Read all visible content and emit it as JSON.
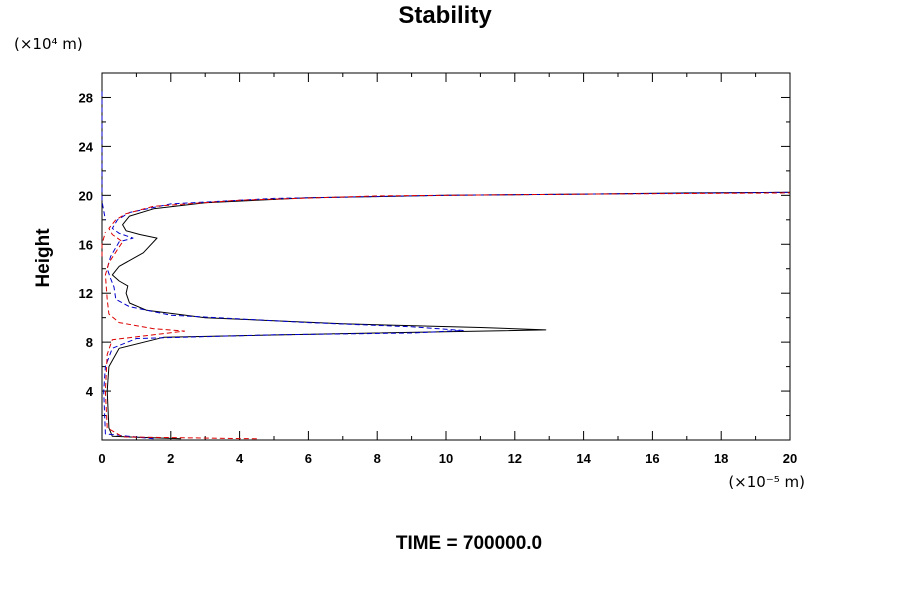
{
  "chart_data": {
    "type": "line",
    "title": "Stability",
    "ylabel": "Height",
    "xlabel": "",
    "x_unit": "(×10⁻⁵ m)",
    "y_unit": "(×10⁴ m)",
    "footer": "TIME = 700000.0",
    "xlim": [
      0,
      20
    ],
    "ylim": [
      0,
      30
    ],
    "x_ticks": [
      0,
      2,
      4,
      6,
      8,
      10,
      12,
      14,
      16,
      18,
      20
    ],
    "y_ticks": [
      4,
      8,
      12,
      16,
      20,
      24,
      28
    ],
    "x_tick_labels": [
      "0",
      "2",
      "4",
      "6",
      "8",
      "10",
      "12",
      "14",
      "16",
      "18",
      "20"
    ],
    "y_tick_labels": [
      "4",
      "8",
      "12",
      "16",
      "20",
      "24",
      "28"
    ],
    "grid": false,
    "legend": "none",
    "series": [
      {
        "color": "#000000",
        "dash": "solid",
        "points": [
          [
            2.3,
            0.1
          ],
          [
            0.3,
            0.3
          ],
          [
            0.2,
            1
          ],
          [
            0.15,
            4
          ],
          [
            0.2,
            6
          ],
          [
            0.5,
            7.5
          ],
          [
            1.8,
            8.4
          ],
          [
            7,
            8.7
          ],
          [
            11,
            8.9
          ],
          [
            12.9,
            9.0
          ],
          [
            11,
            9.2
          ],
          [
            7,
            9.5
          ],
          [
            3,
            10.0
          ],
          [
            1.3,
            10.6
          ],
          [
            0.8,
            11.2
          ],
          [
            0.7,
            12.0
          ],
          [
            0.75,
            12.6
          ],
          [
            0.5,
            13.0
          ],
          [
            0.3,
            13.5
          ],
          [
            0.5,
            14.2
          ],
          [
            1.2,
            15.3
          ],
          [
            1.6,
            16.5
          ],
          [
            1.1,
            16.8
          ],
          [
            0.7,
            17.1
          ],
          [
            0.6,
            17.6
          ],
          [
            0.8,
            18.3
          ],
          [
            1.5,
            18.9
          ],
          [
            3,
            19.4
          ],
          [
            6,
            19.8
          ],
          [
            10,
            20.0
          ],
          [
            14,
            20.1
          ],
          [
            17,
            20.2
          ],
          [
            20,
            20.25
          ]
        ]
      },
      {
        "color": "#0000cc",
        "dash": "dashed",
        "points": [
          [
            1.5,
            0.1
          ],
          [
            0.1,
            0.5
          ],
          [
            0.05,
            4
          ],
          [
            0.1,
            6
          ],
          [
            0.3,
            7.5
          ],
          [
            1.0,
            8.3
          ],
          [
            5,
            8.6
          ],
          [
            9,
            8.75
          ],
          [
            10.5,
            8.95
          ],
          [
            9,
            9.25
          ],
          [
            6,
            9.6
          ],
          [
            2,
            10.2
          ],
          [
            0.8,
            10.9
          ],
          [
            0.4,
            11.5
          ],
          [
            0.35,
            12.5
          ],
          [
            0.25,
            13.2
          ],
          [
            0.15,
            14
          ],
          [
            0.25,
            15
          ],
          [
            0.5,
            16.2
          ],
          [
            0.9,
            16.5
          ],
          [
            0.5,
            16.9
          ],
          [
            0.3,
            17.3
          ],
          [
            0.45,
            18.0
          ],
          [
            0.8,
            18.6
          ],
          [
            2,
            19.3
          ],
          [
            5,
            19.75
          ],
          [
            10,
            20.0
          ],
          [
            20,
            20.25
          ]
        ]
      },
      {
        "color": "#0000cc",
        "dash": "dashed",
        "points": [
          [
            0,
            28.5
          ],
          [
            0,
            27
          ],
          [
            0,
            25
          ],
          [
            0,
            23
          ],
          [
            0,
            21
          ],
          [
            0,
            19.5
          ],
          [
            0.1,
            18
          ]
        ]
      },
      {
        "color": "#dd0000",
        "dash": "dashed",
        "points": [
          [
            4.5,
            0.1
          ],
          [
            0.6,
            0.25
          ],
          [
            0.15,
            1
          ],
          [
            0.1,
            4
          ],
          [
            0.15,
            7
          ],
          [
            0.3,
            8.2
          ],
          [
            2.4,
            8.9
          ],
          [
            1.5,
            9.1
          ],
          [
            0.5,
            9.6
          ],
          [
            0.2,
            10.3
          ],
          [
            0.15,
            11.5
          ],
          [
            0.1,
            13.5
          ],
          [
            0.2,
            14.5
          ],
          [
            0.6,
            16.2
          ],
          [
            0.3,
            16.8
          ],
          [
            0.2,
            17.3
          ],
          [
            0.4,
            18
          ],
          [
            0.7,
            18.5
          ],
          [
            1.5,
            19.1
          ],
          [
            4,
            19.6
          ],
          [
            8,
            19.95
          ],
          [
            14,
            20.1
          ],
          [
            20,
            20.2
          ]
        ]
      },
      {
        "color": "#dd0000",
        "dash": "dashed",
        "points": [
          [
            0,
            15
          ],
          [
            0,
            16
          ],
          [
            0.1,
            17
          ]
        ]
      }
    ]
  }
}
